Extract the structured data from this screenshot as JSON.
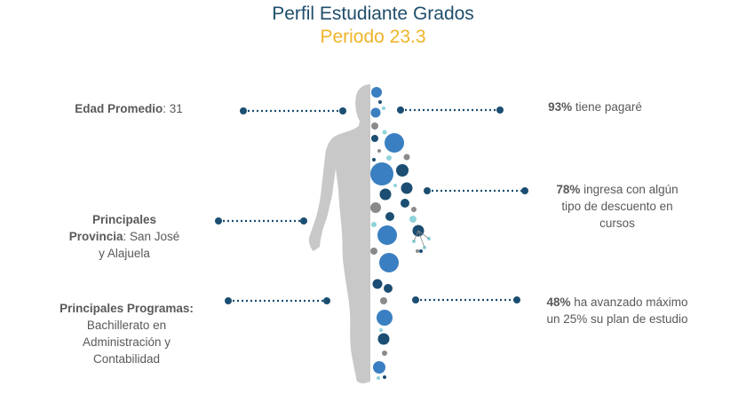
{
  "header": {
    "title": "Perfil Estudiante Grados",
    "subtitle": "Periodo 23.3"
  },
  "left": {
    "age": {
      "label": "Edad Promedio",
      "value": ": 31"
    },
    "province": {
      "label_line1": "Principales",
      "label_line2": "Provincia",
      "value_line2": ": San José",
      "value_line3": "y Alajuela"
    },
    "programs": {
      "label": "Principales Programas",
      "colon": ":",
      "value_line1": "Bachillerato en",
      "value_line2": "Administración y",
      "value_line3": "Contabilidad"
    }
  },
  "right": {
    "pagare": {
      "pct": "93%",
      "text": " tiene pagaré"
    },
    "descuento": {
      "pct": "78%",
      "line1": " ingresa con algún",
      "line2": "tipo de descuento en",
      "line3": "cursos"
    },
    "plan": {
      "pct": "48%",
      "line1": " ha avanzado máximo",
      "line2": "un 25% su plan de estudio"
    }
  },
  "colors": {
    "title": "#1f4e6b",
    "subtitle": "#f0b429",
    "text": "#595959",
    "silhouette": "#c8c8c8",
    "dark_blue": "#1b4e72",
    "mid_blue": "#3a7fc1",
    "teal": "#8fd3da",
    "gray": "#8a8a8a"
  }
}
